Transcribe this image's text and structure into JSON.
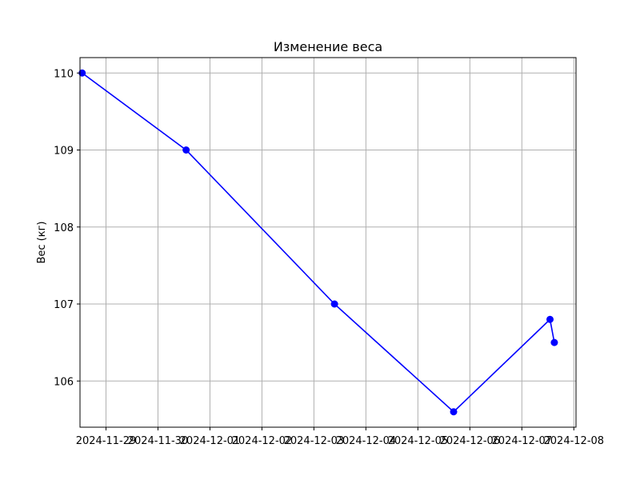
{
  "chart_data": {
    "type": "line",
    "title": "Изменение веса",
    "xlabel": "",
    "ylabel": "Вес (кг)",
    "x_type": "date",
    "xlim": [
      "2024-11-28T12:00",
      "2024-12-08T01:00"
    ],
    "ylim": [
      105.4,
      110.2
    ],
    "x_ticks": [
      "2024-11-29",
      "2024-11-30",
      "2024-12-01",
      "2024-12-02",
      "2024-12-03",
      "2024-12-04",
      "2024-12-05",
      "2024-12-06",
      "2024-12-07",
      "2024-12-08"
    ],
    "y_ticks": [
      106,
      107,
      108,
      109,
      110
    ],
    "grid": true,
    "series": [
      {
        "color": "#0000ff",
        "marker": "circle",
        "points": [
          {
            "x": "2024-11-28T13:00",
            "y": 110.0
          },
          {
            "x": "2024-11-30T13:00",
            "y": 109.0
          },
          {
            "x": "2024-12-03T09:30",
            "y": 107.0
          },
          {
            "x": "2024-12-05T16:30",
            "y": 105.6
          },
          {
            "x": "2024-12-07T13:00",
            "y": 106.8
          },
          {
            "x": "2024-12-07T15:00",
            "y": 106.5
          }
        ]
      }
    ]
  }
}
